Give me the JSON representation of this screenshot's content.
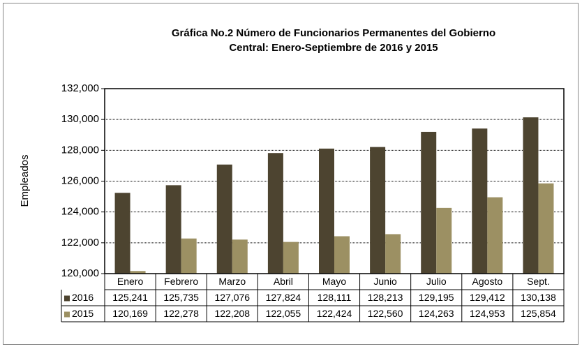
{
  "chart_data": {
    "type": "bar",
    "title": [
      "Gráfica No.2 Número de Funcionarios Permanentes del Gobierno",
      "Central: Enero-Septiembre de 2016 y 2015"
    ],
    "y_label": "Empleados",
    "categories": [
      "Enero",
      "Febrero",
      "Marzo",
      "Abril",
      "Mayo",
      "Junio",
      "Julio",
      "Agosto",
      "Sept."
    ],
    "series": [
      {
        "name": "2016",
        "color": "#4d4430",
        "values": [
          125241,
          125735,
          127076,
          127824,
          128111,
          128213,
          129195,
          129412,
          130138
        ],
        "value_labels": [
          "125,241",
          "125,735",
          "127,076",
          "127,824",
          "128,111",
          "128,213",
          "129,195",
          "129,412",
          "130,138"
        ]
      },
      {
        "name": "2015",
        "color": "#9c9063",
        "values": [
          120169,
          122278,
          122208,
          122055,
          122424,
          122560,
          124263,
          124953,
          125854
        ],
        "value_labels": [
          "120,169",
          "122,278",
          "122,208",
          "122,055",
          "122,424",
          "122,560",
          "124,263",
          "124,953",
          "125,854"
        ]
      }
    ],
    "ylim": [
      120000,
      132000
    ],
    "yticks": [
      {
        "value": 120000,
        "label": "120,000"
      },
      {
        "value": 122000,
        "label": "122,000"
      },
      {
        "value": 124000,
        "label": "124,000"
      },
      {
        "value": 126000,
        "label": "126,000"
      },
      {
        "value": 128000,
        "label": "128,000"
      },
      {
        "value": 130000,
        "label": "130,000"
      },
      {
        "value": 132000,
        "label": "132,000"
      }
    ],
    "grid": true
  }
}
